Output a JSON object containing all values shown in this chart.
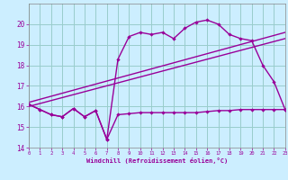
{
  "bg_color": "#cceeff",
  "grid_color": "#99cccc",
  "line_color": "#990099",
  "x_min": 0,
  "x_max": 23,
  "y_min": 14,
  "y_max": 21,
  "xlabel": "Windchill (Refroidissement éolien,°C)",
  "series1_x": [
    0,
    1,
    2,
    3,
    4,
    5,
    6,
    7,
    8,
    9,
    10,
    11,
    12,
    13,
    14,
    15,
    16,
    17,
    18,
    19,
    20,
    21,
    22,
    23
  ],
  "series1_y": [
    16.1,
    15.85,
    15.6,
    15.5,
    15.9,
    15.5,
    15.8,
    14.4,
    15.6,
    15.65,
    15.7,
    15.7,
    15.7,
    15.7,
    15.7,
    15.7,
    15.75,
    15.8,
    15.8,
    15.85,
    15.85,
    15.85,
    15.85,
    15.85
  ],
  "series2_x": [
    0,
    1,
    2,
    3,
    4,
    5,
    6,
    7,
    8,
    9,
    10,
    11,
    12,
    13,
    14,
    15,
    16,
    17,
    18,
    19,
    20,
    21,
    22,
    23
  ],
  "series2_y": [
    16.1,
    15.85,
    15.6,
    15.5,
    15.9,
    15.5,
    15.8,
    14.4,
    18.3,
    19.4,
    19.6,
    19.5,
    19.6,
    19.3,
    19.8,
    20.1,
    20.2,
    20.0,
    19.5,
    19.3,
    19.2,
    18.0,
    17.2,
    15.85
  ],
  "series3_x": [
    0,
    23
  ],
  "series3_y": [
    16.0,
    19.3
  ],
  "series4_x": [
    0,
    23
  ],
  "series4_y": [
    16.2,
    19.6
  ],
  "yticks": [
    14,
    15,
    16,
    17,
    18,
    19,
    20
  ],
  "xticks": [
    0,
    1,
    2,
    3,
    4,
    5,
    6,
    7,
    8,
    9,
    10,
    11,
    12,
    13,
    14,
    15,
    16,
    17,
    18,
    19,
    20,
    21,
    22,
    23
  ]
}
